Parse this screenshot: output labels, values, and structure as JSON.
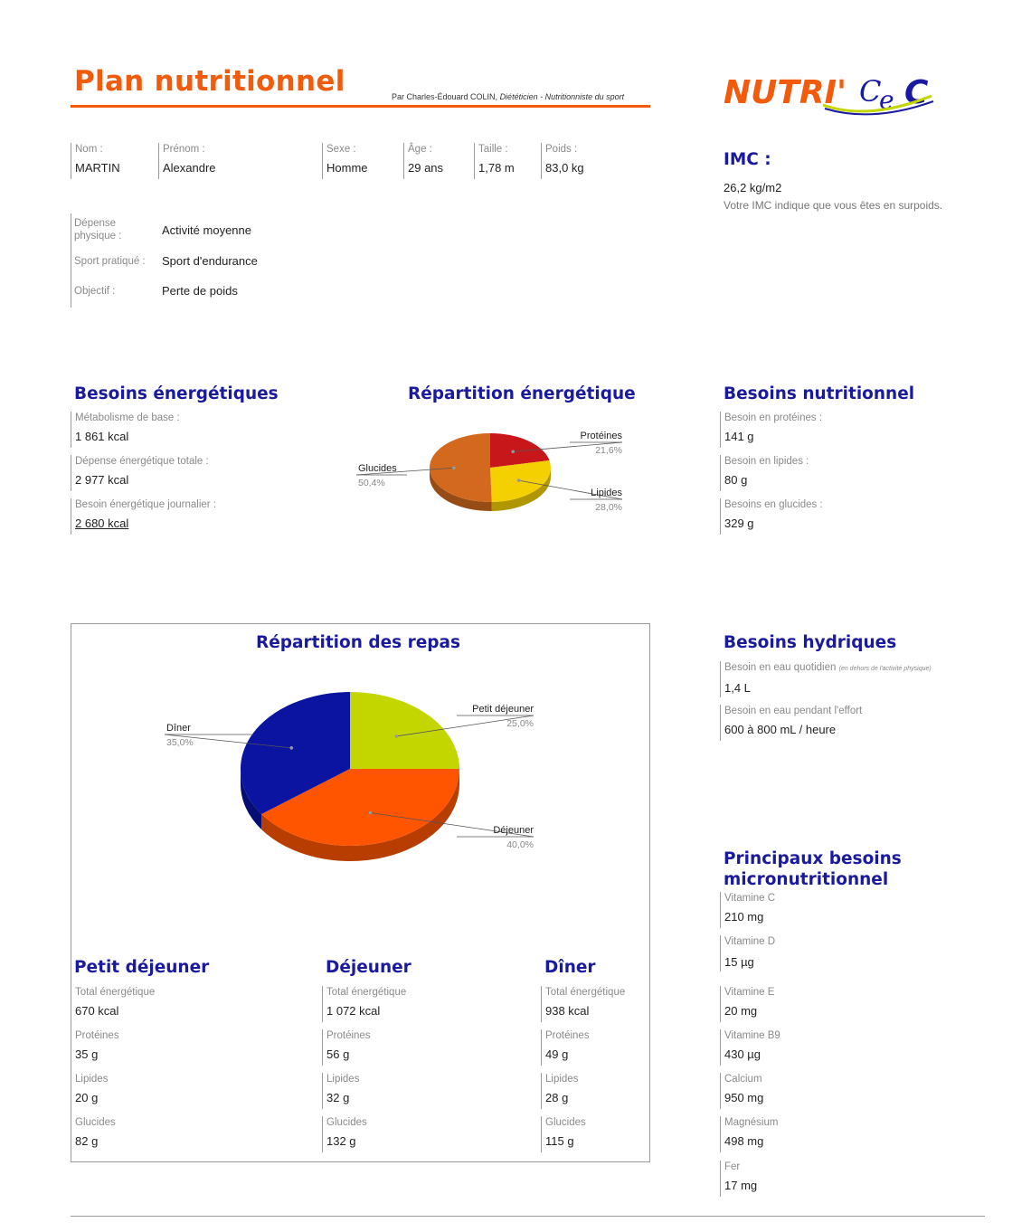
{
  "header": {
    "title": "Plan nutritionnel",
    "byline_name": "Par Charles-Édouard COLIN, ",
    "byline_role": "Diététicien - Nutritionniste du sport",
    "logo_main": "NUTRI'",
    "logo_c1": "C",
    "logo_e": "e",
    "logo_c2": "C"
  },
  "identity": {
    "nom_label": "Nom :",
    "nom": "MARTIN",
    "prenom_label": "Prénom :",
    "prenom": "Alexandre",
    "sexe_label": "Sexe :",
    "sexe": "Homme",
    "age_label": "Âge :",
    "age": "29 ans",
    "taille_label": "Taille :",
    "taille": "1,78  m",
    "poids_label": "Poids :",
    "poids": "83,0  kg"
  },
  "profile": {
    "depense_label": "Dépense physique :",
    "depense": "Activité moyenne",
    "sport_label": "Sport pratiqué :",
    "sport": "Sport d'endurance",
    "objectif_label": "Objectif :",
    "objectif": "Perte de poids"
  },
  "imc": {
    "title": "IMC :",
    "value": "26,2  kg/m2",
    "text": "Votre IMC indique que vous êtes en surpoids."
  },
  "besoins_energetiques": {
    "title": "Besoins énergétiques",
    "metab_label": "Métabolisme de base :",
    "metab": "1 861 kcal",
    "depense_label": "Dépense énergétique totale :",
    "depense": "2 977 kcal",
    "besoin_label": "Besoin énergétique journalier :",
    "besoin": "2 680 kcal"
  },
  "repartition_energetique": {
    "title": "Répartition énergétique"
  },
  "besoins_nutritionnel": {
    "title": "Besoins nutritionnel",
    "prot_label": "Besoin en protéines :",
    "prot": "141 g",
    "lip_label": "Besoin en lipides :",
    "lip": "80 g",
    "gluc_label": "Besoins en glucides :",
    "gluc": "329 g"
  },
  "repartition_repas": {
    "title": "Répartition des repas"
  },
  "hydriques": {
    "title": "Besoins hydriques",
    "quotidien_label": "Besoin en eau quotidien ",
    "quotidien_note": "(en dehors de l'activité physique)",
    "quotidien": "1,4 L",
    "effort_label": "Besoin en eau pendant l'effort",
    "effort": "600 à 800 mL / heure"
  },
  "micro": {
    "title_line1": "Principaux besoins",
    "title_line2": "micronutritionnel",
    "items": [
      {
        "label": "Vitamine C",
        "value": "210 mg"
      },
      {
        "label": "Vitamine D",
        "value": "15 µg"
      },
      {
        "label": "Vitamine E",
        "value": "20 mg"
      },
      {
        "label": "Vitamine B9",
        "value": "430 µg"
      },
      {
        "label": "Calcium",
        "value": "950 mg"
      },
      {
        "label": "Magnésium",
        "value": "498 mg"
      },
      {
        "label": "Fer",
        "value": "17 mg"
      }
    ]
  },
  "meals": [
    {
      "title": "Petit déjeuner",
      "energy_label": "Total énergétique",
      "energy": "670 kcal",
      "prot_label": "Protéines",
      "prot": "35 g",
      "lip_label": "Lipides",
      "lip": "20 g",
      "gluc_label": "Glucides",
      "gluc": "82 g"
    },
    {
      "title": "Déjeuner",
      "energy_label": "Total énergétique",
      "energy": "1 072 kcal",
      "prot_label": "Protéines",
      "prot": "56 g",
      "lip_label": "Lipides",
      "lip": "32 g",
      "gluc_label": "Glucides",
      "gluc": "132 g"
    },
    {
      "title": "Dîner",
      "energy_label": "Total énergétique",
      "energy": "938 kcal",
      "prot_label": "Protéines",
      "prot": "49 g",
      "lip_label": "Lipides",
      "lip": "28 g",
      "gluc_label": "Glucides",
      "gluc": "115 g"
    }
  ],
  "chart_data": [
    {
      "type": "pie",
      "title": "Répartition énergétique",
      "series": [
        {
          "values": [
            21.6,
            28.0,
            50.4
          ]
        }
      ],
      "categories": [
        "Protéines",
        "Lipides",
        "Glucides"
      ],
      "labels_pct": [
        "21,6%",
        "28,0%",
        "50,4%"
      ],
      "colors": [
        "#c8171b",
        "#f5d000",
        "#d2691e"
      ]
    },
    {
      "type": "pie",
      "title": "Répartition des repas",
      "series": [
        {
          "values": [
            25.0,
            40.0,
            35.0
          ]
        }
      ],
      "categories": [
        "Petit déjeuner",
        "Déjeuner",
        "Dîner"
      ],
      "labels_pct": [
        "25,0%",
        "40,0%",
        "35,0%"
      ],
      "colors": [
        "#c3d600",
        "#ff5500",
        "#0a14a0"
      ]
    }
  ]
}
